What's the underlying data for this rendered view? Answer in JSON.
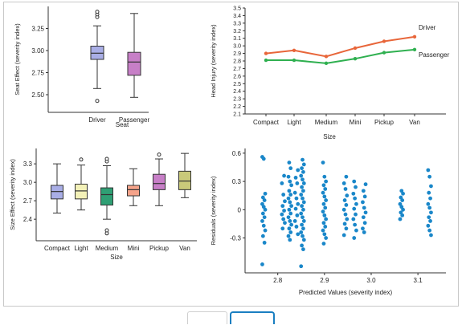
{
  "colors": {
    "axis": "#333333",
    "driver_line": "#e8663a",
    "passenger_line": "#2fb050",
    "scatter_point": "#1a87c9",
    "nav_accent": "#1a7fc1"
  },
  "chart_data": [
    {
      "type": "boxplot",
      "ylabel": "Seat Effect (severity index)",
      "xlabel": "Seat",
      "categories": [
        "Driver",
        "Passenger"
      ],
      "ylim": [
        2.3,
        3.5
      ],
      "yticks": [
        2.5,
        2.75,
        3.0,
        3.25
      ],
      "ytick_labels": [
        "2.50",
        "2.75",
        "3.00",
        "3.25"
      ],
      "boxes": [
        {
          "category": "Driver",
          "color": "#a9aee6",
          "whisker_low": 2.57,
          "q1": 2.9,
          "median": 2.97,
          "q3": 3.05,
          "whisker_high": 3.28,
          "outliers": [
            2.43,
            3.38,
            3.41,
            3.44
          ]
        },
        {
          "category": "Passenger",
          "color": "#c77fc7",
          "whisker_low": 2.47,
          "q1": 2.72,
          "median": 2.87,
          "q3": 2.98,
          "whisker_high": 3.42,
          "outliers": []
        }
      ]
    },
    {
      "type": "line",
      "ylabel": "Head Injury (severity index)",
      "xlabel": "Size",
      "categories": [
        "Compact",
        "Light",
        "Medium",
        "Mini",
        "Pickup",
        "Van"
      ],
      "ylim": [
        2.1,
        3.5
      ],
      "yticks": [
        2.1,
        2.2,
        2.3,
        2.4,
        2.5,
        2.6,
        2.7,
        2.8,
        2.9,
        3.0,
        3.1,
        3.2,
        3.3,
        3.4,
        3.5
      ],
      "ytick_labels": [
        "2.1",
        "2.2",
        "2.3",
        "2.4",
        "2.5",
        "2.6",
        "2.7",
        "2.8",
        "2.9",
        "3.0",
        "3.1",
        "3.2",
        "3.3",
        "3.4",
        "3.5"
      ],
      "series": [
        {
          "name": "Driver",
          "color": "#e8663a",
          "values": [
            2.9,
            2.94,
            2.86,
            2.97,
            3.06,
            3.12
          ]
        },
        {
          "name": "Passenger",
          "color": "#2fb050",
          "values": [
            2.81,
            2.81,
            2.77,
            2.83,
            2.91,
            2.95
          ]
        }
      ]
    },
    {
      "type": "boxplot",
      "ylabel": "Size Effect (severity index)",
      "xlabel": "Size",
      "categories": [
        "Compact",
        "Light",
        "Medium",
        "Mini",
        "Pickup",
        "Van"
      ],
      "ylim": [
        2.05,
        3.55
      ],
      "yticks": [
        2.4,
        2.7,
        3.0,
        3.3
      ],
      "ytick_labels": [
        "2.4",
        "2.7",
        "3.0",
        "3.3"
      ],
      "boxes": [
        {
          "category": "Compact",
          "color": "#a9aee6",
          "whisker_low": 2.5,
          "q1": 2.73,
          "median": 2.85,
          "q3": 2.95,
          "whisker_high": 3.3,
          "outliers": []
        },
        {
          "category": "Light",
          "color": "#f3f1b8",
          "whisker_low": 2.55,
          "q1": 2.73,
          "median": 2.86,
          "q3": 2.97,
          "whisker_high": 3.28,
          "outliers": [
            3.37
          ]
        },
        {
          "category": "Medium",
          "color": "#2f9f74",
          "whisker_low": 2.4,
          "q1": 2.63,
          "median": 2.8,
          "q3": 2.91,
          "whisker_high": 3.27,
          "outliers": [
            2.17,
            2.22,
            3.34,
            3.38
          ]
        },
        {
          "category": "Mini",
          "color": "#f5a38a",
          "whisker_low": 2.62,
          "q1": 2.78,
          "median": 2.88,
          "q3": 2.95,
          "whisker_high": 3.22,
          "outliers": []
        },
        {
          "category": "Pickup",
          "color": "#c77fc7",
          "whisker_low": 2.62,
          "q1": 2.88,
          "median": 2.98,
          "q3": 3.13,
          "whisker_high": 3.38,
          "outliers": [
            3.45
          ]
        },
        {
          "category": "Van",
          "color": "#c9c97a",
          "whisker_low": 2.75,
          "q1": 2.88,
          "median": 3.02,
          "q3": 3.18,
          "whisker_high": 3.47,
          "outliers": []
        }
      ]
    },
    {
      "type": "scatter",
      "ylabel": "Residuals (severity index)",
      "xlabel": "Predicted Values (severity index)",
      "xlim": [
        2.73,
        3.16
      ],
      "ylim": [
        -0.67,
        0.65
      ],
      "xticks": [
        2.8,
        2.9,
        3.0,
        3.1
      ],
      "xtick_labels": [
        "2.8",
        "2.9",
        "3.0",
        "3.1"
      ],
      "yticks": [
        -0.3,
        0.0,
        0.3,
        0.6
      ],
      "ytick_labels": [
        "-0.3",
        "0",
        "0.3",
        "0.6"
      ],
      "groups": [
        {
          "x": 2.77,
          "values": [
            0.56,
            0.54,
            0.17,
            0.13,
            0.1,
            0.06,
            0.03,
            0.0,
            -0.04,
            -0.08,
            -0.12,
            -0.17,
            -0.22,
            -0.28,
            -0.35,
            -0.58
          ]
        },
        {
          "x": 2.812,
          "values": [
            0.36,
            0.28,
            0.16,
            0.09,
            0.04,
            -0.01,
            -0.05,
            -0.1,
            -0.14,
            -0.2
          ]
        },
        {
          "x": 2.826,
          "values": [
            0.5,
            0.44,
            0.35,
            0.3,
            0.26,
            0.2,
            0.16,
            0.12,
            0.08,
            0.04,
            0.0,
            -0.04,
            -0.08,
            -0.12,
            -0.16,
            -0.2,
            -0.24,
            -0.28,
            -0.32
          ]
        },
        {
          "x": 2.84,
          "values": [
            0.42,
            0.34,
            0.28,
            0.18,
            0.12,
            0.06,
            0.01,
            -0.06,
            -0.12,
            -0.18,
            -0.26
          ]
        },
        {
          "x": 2.853,
          "values": [
            0.53,
            0.48,
            0.44,
            0.4,
            0.36,
            0.32,
            0.28,
            0.24,
            0.2,
            0.16,
            0.12,
            0.08,
            0.04,
            0.0,
            -0.04,
            -0.08,
            -0.12,
            -0.16,
            -0.2,
            -0.24,
            -0.28,
            -0.32,
            -0.38,
            -0.42,
            -0.6
          ]
        },
        {
          "x": 2.9,
          "values": [
            0.5,
            0.35,
            0.3,
            0.26,
            0.22,
            0.18,
            0.14,
            0.1,
            0.06,
            0.02,
            -0.02,
            -0.06,
            -0.1,
            -0.14,
            -0.18,
            -0.22,
            -0.26,
            -0.3,
            -0.36
          ]
        },
        {
          "x": 2.945,
          "values": [
            0.35,
            0.28,
            0.22,
            0.15,
            0.1,
            0.05,
            0.0,
            -0.05,
            -0.1,
            -0.15,
            -0.2,
            -0.27
          ]
        },
        {
          "x": 2.965,
          "values": [
            0.3,
            0.24,
            0.17,
            0.12,
            0.06,
            0.01,
            -0.05,
            -0.1,
            -0.16,
            -0.22,
            -0.3
          ]
        },
        {
          "x": 2.985,
          "values": [
            0.27,
            0.2,
            0.14,
            0.08,
            0.02,
            -0.03,
            -0.08,
            -0.14,
            -0.2,
            -0.24
          ]
        },
        {
          "x": 3.065,
          "values": [
            0.2,
            0.17,
            0.13,
            0.1,
            0.06,
            0.03,
            0.0,
            -0.03,
            -0.06,
            -0.1
          ]
        },
        {
          "x": 3.125,
          "values": [
            0.42,
            0.35,
            0.25,
            0.18,
            0.12,
            0.06,
            0.02,
            -0.03,
            -0.08,
            -0.12,
            -0.17,
            -0.22,
            -0.27
          ]
        }
      ]
    }
  ]
}
